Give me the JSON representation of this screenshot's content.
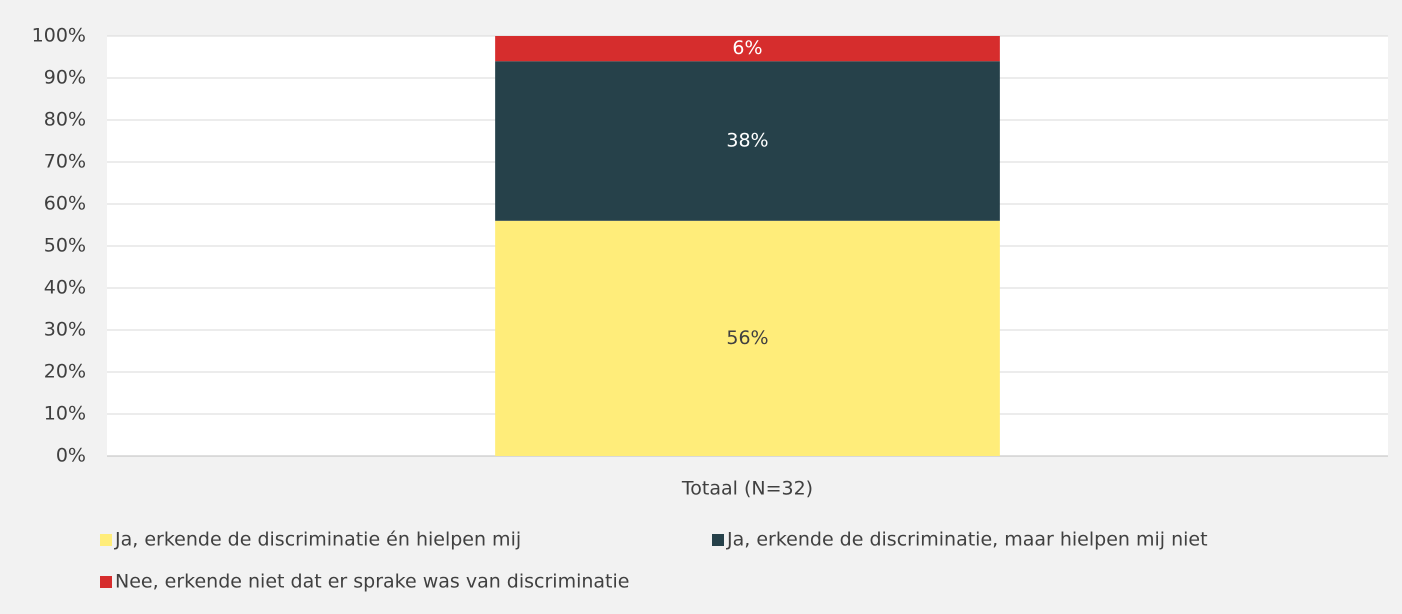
{
  "chart_data": {
    "type": "stacked_bar",
    "categories": [
      "Totaal (N=32)"
    ],
    "series": [
      {
        "name": "Ja, erkende de discriminatie én hielpen mij",
        "color": "#ffed7a",
        "values": [
          56
        ],
        "value_labels": [
          "56%"
        ]
      },
      {
        "name": "Ja, erkende de discriminatie, maar hielpen mij niet",
        "color": "#26414a",
        "values": [
          38
        ],
        "value_labels": [
          "38%"
        ]
      },
      {
        "name": "Nee, erkende niet dat er sprake was van discriminatie",
        "color": "#d62d2d",
        "values": [
          6
        ],
        "value_labels": [
          "6%"
        ]
      }
    ],
    "ylim": [
      0,
      100
    ],
    "yticks": [
      {
        "value": 0,
        "label": "0%"
      },
      {
        "value": 10,
        "label": "10%"
      },
      {
        "value": 20,
        "label": "20%"
      },
      {
        "value": 30,
        "label": "30%"
      },
      {
        "value": 40,
        "label": "40%"
      },
      {
        "value": 50,
        "label": "50%"
      },
      {
        "value": 60,
        "label": "60%"
      },
      {
        "value": 70,
        "label": "70%"
      },
      {
        "value": 80,
        "label": "80%"
      },
      {
        "value": 90,
        "label": "90%"
      },
      {
        "value": 100,
        "label": "100%"
      }
    ],
    "grid": true,
    "legend": "bottom"
  }
}
